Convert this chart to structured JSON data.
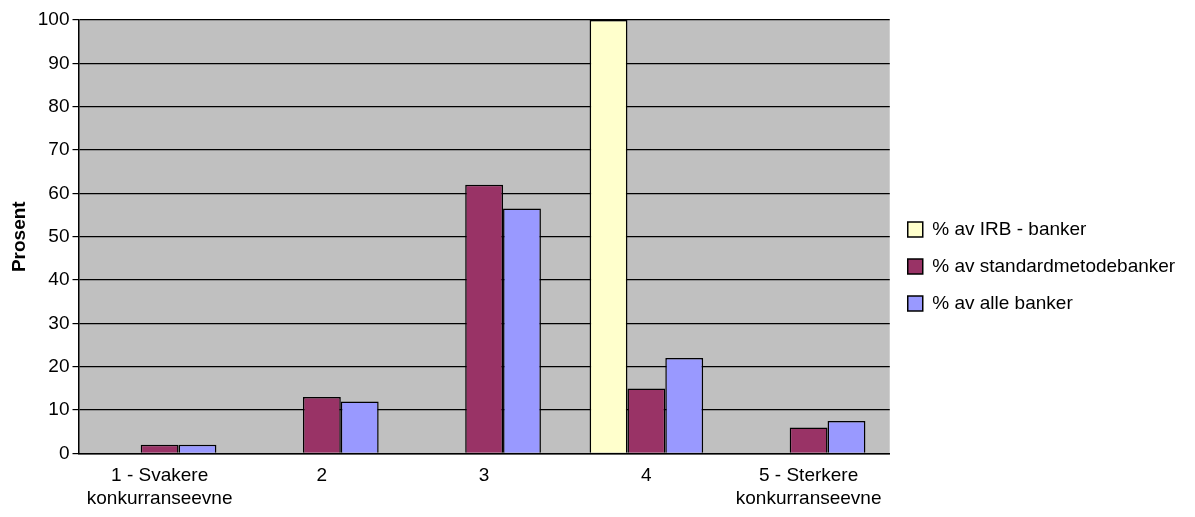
{
  "chart_data": {
    "type": "bar",
    "ylabel": "Prosent",
    "categories": [
      "1 - Svakere konkurranseevne",
      "2",
      "3",
      "4",
      "5 - Sterkere konkurranseevne"
    ],
    "series": [
      {
        "name": "% av IRB - banker",
        "color": "#ffffcc",
        "values": [
          0,
          0,
          0,
          100,
          0
        ]
      },
      {
        "name": "% av standardmetodebanker",
        "color": "#993366",
        "values": [
          2,
          13,
          62,
          15,
          6
        ]
      },
      {
        "name": "% av alle banker",
        "color": "#9999ff",
        "values": [
          2,
          12,
          56.5,
          22,
          7.5
        ]
      }
    ],
    "ylim": [
      0,
      100
    ],
    "yticks": [
      0,
      10,
      20,
      30,
      40,
      50,
      60,
      70,
      80,
      90,
      100
    ],
    "grid": "y",
    "legend": "right"
  }
}
